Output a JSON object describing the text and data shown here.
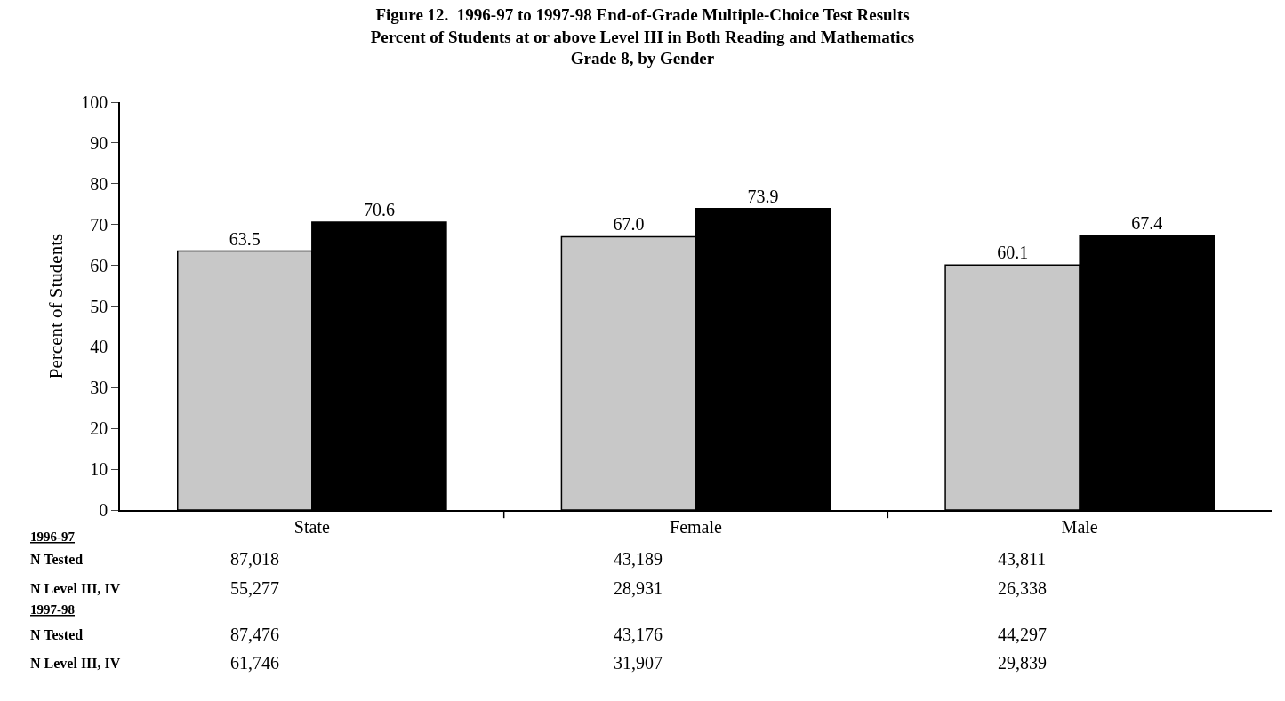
{
  "chart_data": {
    "type": "bar",
    "title": "Figure 12.  1996-97 to 1997-98 End-of-Grade Multiple-Choice Test Results",
    "subtitle": "Percent of Students at or above Level III in Both Reading and Mathematics\nGrade 8, by Gender",
    "ylabel": "Percent of Students",
    "categories": [
      "State",
      "Female",
      "Male"
    ],
    "series": [
      {
        "color": "#c8c8c8",
        "values": [
          63.5,
          67.0,
          60.1
        ],
        "value_labels": [
          "63.5",
          "67.0",
          "60.1"
        ]
      },
      {
        "color": "#000000",
        "values": [
          70.6,
          73.9,
          67.4
        ],
        "value_labels": [
          "70.6",
          "73.9",
          "67.4"
        ]
      }
    ],
    "ylim": [
      0,
      100
    ],
    "yticks": [
      0,
      10,
      20,
      30,
      40,
      50,
      60,
      70,
      80,
      90,
      100
    ],
    "legend": false,
    "annotations": [
      "1996-97",
      "N Tested",
      "87,018",
      "43,189",
      "43,811",
      "N Level III, IV",
      "55,277",
      "28,931",
      "26,338",
      "1997-98",
      "N Tested",
      "87,476",
      "43,176",
      "44,297",
      "N Level III, IV",
      "61,746",
      "31,907",
      "29,839"
    ]
  }
}
